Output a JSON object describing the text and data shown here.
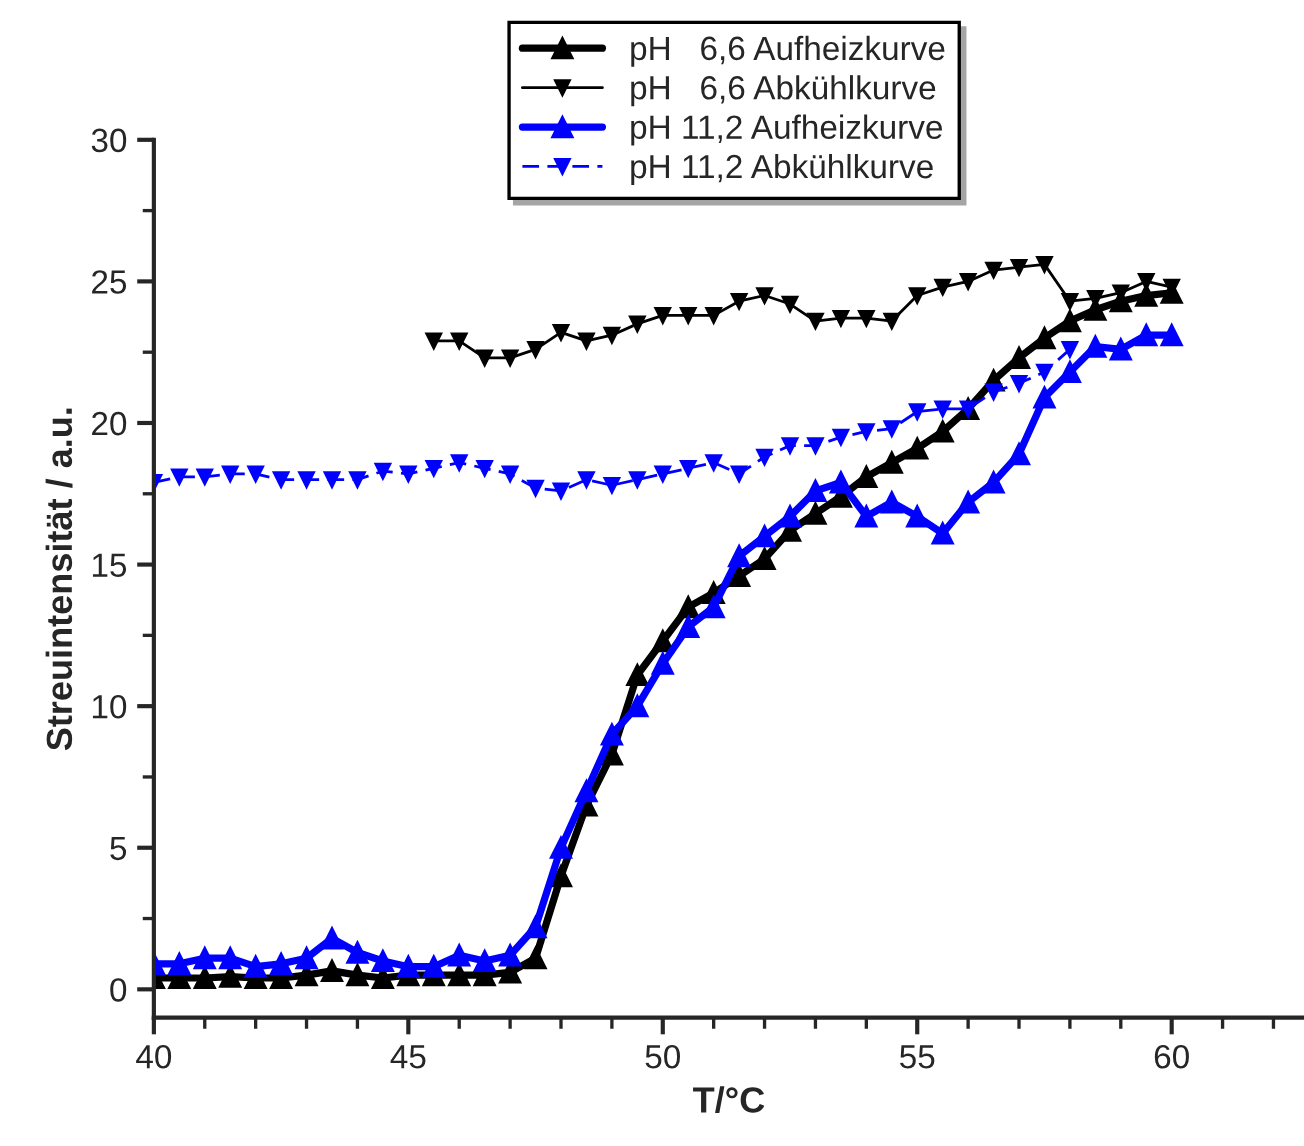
{
  "chart_data": {
    "type": "line",
    "xlabel": "T/°C",
    "ylabel": "Streuintensität / a.u.",
    "xlim": [
      40,
      62.6
    ],
    "xticks": [
      40,
      45,
      50,
      55,
      60
    ],
    "ylim": [
      -1,
      30
    ],
    "yticks": [
      0,
      5,
      10,
      15,
      20,
      25,
      30
    ],
    "grid": false,
    "legend": "top",
    "series": [
      {
        "name": "pH   6,6 Aufheizkurve",
        "color": "#000000",
        "marker": "triangle",
        "line_style": "solid",
        "x": [
          40,
          40.5,
          41,
          41.5,
          42,
          42.5,
          43,
          43.5,
          44,
          44.5,
          45,
          45.5,
          46,
          46.5,
          47,
          47.5,
          48,
          48.5,
          49,
          49.5,
          50,
          50.5,
          51,
          51.5,
          52,
          52.5,
          53,
          53.5,
          54,
          54.5,
          55,
          55.5,
          56,
          56.5,
          57,
          57.5,
          58,
          58.5,
          59,
          59.5,
          60
        ],
        "values": [
          0.4,
          0.4,
          0.4,
          0.45,
          0.4,
          0.4,
          0.5,
          0.65,
          0.5,
          0.4,
          0.5,
          0.5,
          0.5,
          0.5,
          0.6,
          1.1,
          4.0,
          6.5,
          8.3,
          11.1,
          12.3,
          13.5,
          14.0,
          14.6,
          15.2,
          16.2,
          16.8,
          17.4,
          18.1,
          18.6,
          19.1,
          19.7,
          20.5,
          21.5,
          22.3,
          23.0,
          23.6,
          24.0,
          24.3,
          24.5,
          24.6
        ]
      },
      {
        "name": "pH   6,6 Abkühlkurve",
        "color": "#000000",
        "marker": "triangle_down",
        "line_style": "solid",
        "x": [
          45.5,
          46,
          46.5,
          47,
          47.5,
          48,
          48.5,
          49,
          49.5,
          50,
          50.5,
          51,
          51.5,
          52,
          52.5,
          53,
          53.5,
          54,
          54.5,
          55,
          55.5,
          56,
          56.5,
          57,
          57.5,
          58,
          58.5,
          59,
          59.5,
          60
        ],
        "values": [
          22.9,
          22.9,
          22.3,
          22.3,
          22.6,
          23.2,
          22.9,
          23.1,
          23.5,
          23.8,
          23.8,
          23.8,
          24.3,
          24.5,
          24.2,
          23.6,
          23.7,
          23.7,
          23.6,
          24.5,
          24.8,
          25.0,
          25.4,
          25.5,
          25.6,
          24.3,
          24.4,
          24.6,
          25.0,
          24.8
        ]
      },
      {
        "name": "pH 11,2 Aufheizkurve",
        "color": "#0000ff",
        "marker": "triangle",
        "line_style": "solid",
        "x": [
          40,
          40.5,
          41,
          41.5,
          42,
          42.5,
          43,
          43.5,
          44,
          44.5,
          45,
          45.5,
          46,
          46.5,
          47,
          47.5,
          48,
          48.5,
          49,
          49.5,
          50,
          50.5,
          51,
          51.5,
          52,
          52.5,
          53,
          53.5,
          54,
          54.5,
          55,
          55.5,
          56,
          56.5,
          57,
          57.5,
          58,
          58.5,
          59,
          59.5,
          60
        ],
        "values": [
          0.9,
          0.9,
          1.1,
          1.1,
          0.8,
          0.9,
          1.1,
          1.8,
          1.3,
          1.0,
          0.8,
          0.8,
          1.2,
          1.0,
          1.2,
          2.2,
          5.0,
          7.0,
          9.0,
          10.0,
          11.5,
          12.8,
          13.5,
          15.3,
          16.0,
          16.7,
          17.6,
          17.9,
          16.7,
          17.2,
          16.7,
          16.1,
          17.2,
          17.9,
          18.9,
          20.9,
          21.8,
          22.7,
          22.6,
          23.1,
          23.1
        ]
      },
      {
        "name": "pH 11,2 Abkühlkurve",
        "color": "#0000ff",
        "marker": "triangle_down",
        "line_style": "dashed",
        "x": [
          40,
          40.5,
          41,
          41.5,
          42,
          42.5,
          43,
          43.5,
          44,
          44.5,
          45,
          45.5,
          46,
          46.5,
          47,
          47.5,
          48,
          48.5,
          49,
          49.5,
          50,
          50.5,
          51,
          51.5,
          52,
          52.5,
          53,
          53.5,
          54,
          54.5,
          55,
          55.5,
          56,
          56.5,
          57,
          57.5,
          58
        ],
        "values": [
          17.9,
          18.1,
          18.1,
          18.2,
          18.2,
          18.0,
          18.0,
          18.0,
          18.0,
          18.3,
          18.2,
          18.4,
          18.6,
          18.4,
          18.2,
          17.7,
          17.6,
          18.0,
          17.8,
          18.0,
          18.2,
          18.4,
          18.6,
          18.2,
          18.8,
          19.2,
          19.2,
          19.5,
          19.7,
          19.8,
          20.4,
          20.5,
          20.5,
          21.1,
          21.4,
          21.8,
          22.6
        ]
      }
    ]
  }
}
